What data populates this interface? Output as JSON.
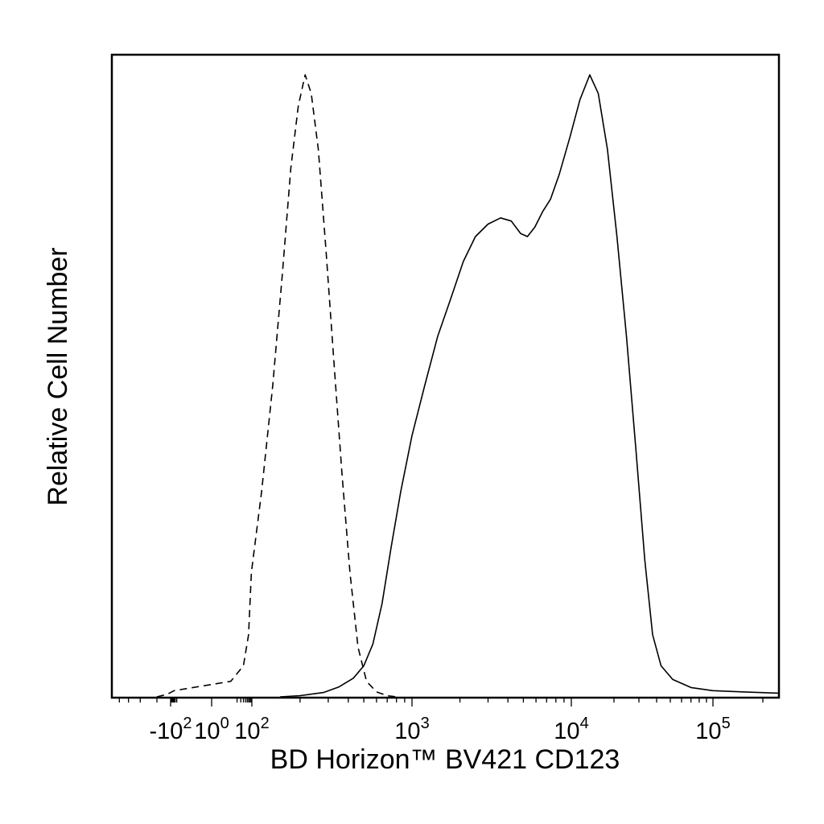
{
  "chart_data": {
    "type": "line",
    "title": "",
    "xlabel": "BD Horizon™ BV421 CD123",
    "ylabel": "Relative Cell Number",
    "x_scale": "biexponential",
    "xlim": [
      -600,
      250000
    ],
    "ylim": [
      0,
      1
    ],
    "grid": false,
    "legend": "none",
    "x_ticks": [
      {
        "value": -100,
        "base": "-10",
        "exp": "2"
      },
      {
        "value": 1,
        "base": "10",
        "exp": "0"
      },
      {
        "value": 100,
        "base": "10",
        "exp": "2"
      },
      {
        "value": 1000,
        "base": "10",
        "exp": "3"
      },
      {
        "value": 10000,
        "base": "10",
        "exp": "4"
      },
      {
        "value": 100000,
        "base": "10",
        "exp": "5"
      }
    ],
    "series": [
      {
        "style": "dashed",
        "color": "#000000",
        "points": [
          [
            -200,
            0.0
          ],
          [
            -120,
            0.004
          ],
          [
            -40,
            0.01
          ],
          [
            10,
            0.025
          ],
          [
            40,
            0.05
          ],
          [
            70,
            0.1
          ],
          [
            95,
            0.2
          ],
          [
            115,
            0.33
          ],
          [
            135,
            0.5
          ],
          [
            155,
            0.68
          ],
          [
            175,
            0.85
          ],
          [
            195,
            0.95
          ],
          [
            215,
            1.0
          ],
          [
            235,
            0.97
          ],
          [
            260,
            0.88
          ],
          [
            290,
            0.72
          ],
          [
            325,
            0.54
          ],
          [
            365,
            0.36
          ],
          [
            410,
            0.2
          ],
          [
            460,
            0.08
          ],
          [
            520,
            0.025
          ],
          [
            600,
            0.008
          ],
          [
            700,
            0.002
          ],
          [
            800,
            0.0
          ]
        ]
      },
      {
        "style": "solid",
        "color": "#000000",
        "points": [
          [
            150,
            0.0
          ],
          [
            200,
            0.002
          ],
          [
            280,
            0.007
          ],
          [
            350,
            0.016
          ],
          [
            430,
            0.03
          ],
          [
            500,
            0.05
          ],
          [
            570,
            0.085
          ],
          [
            650,
            0.15
          ],
          [
            740,
            0.24
          ],
          [
            850,
            0.33
          ],
          [
            1000,
            0.42
          ],
          [
            1200,
            0.5
          ],
          [
            1450,
            0.58
          ],
          [
            1750,
            0.64
          ],
          [
            2100,
            0.7
          ],
          [
            2500,
            0.74
          ],
          [
            3000,
            0.76
          ],
          [
            3600,
            0.77
          ],
          [
            4200,
            0.765
          ],
          [
            4800,
            0.745
          ],
          [
            5300,
            0.74
          ],
          [
            5900,
            0.755
          ],
          [
            6600,
            0.78
          ],
          [
            7400,
            0.8
          ],
          [
            8400,
            0.84
          ],
          [
            9800,
            0.9
          ],
          [
            11500,
            0.96
          ],
          [
            13500,
            1.0
          ],
          [
            15500,
            0.97
          ],
          [
            18000,
            0.88
          ],
          [
            21000,
            0.74
          ],
          [
            24500,
            0.58
          ],
          [
            28500,
            0.4
          ],
          [
            33000,
            0.22
          ],
          [
            37500,
            0.1
          ],
          [
            43000,
            0.05
          ],
          [
            52000,
            0.028
          ],
          [
            70000,
            0.015
          ],
          [
            100000,
            0.01
          ],
          [
            150000,
            0.008
          ],
          [
            250000,
            0.006
          ]
        ]
      }
    ]
  }
}
